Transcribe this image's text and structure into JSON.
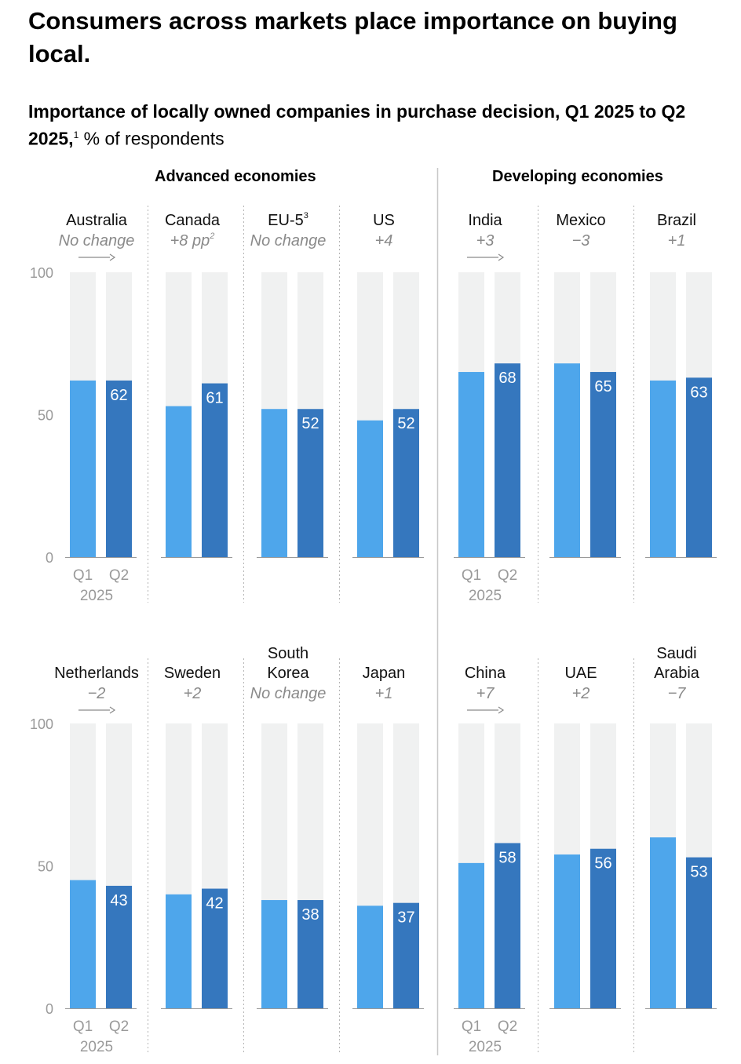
{
  "title": "Consumers across markets place importance on buying local.",
  "subtitle": {
    "main": "Importance of locally owned companies in purchase decision, Q1 2025 to Q2 2025,",
    "footnote": "1",
    "unit": "% of respondents"
  },
  "groups": {
    "advanced": "Advanced economies",
    "developing": "Developing economies"
  },
  "axis": {
    "ticks": [
      "0",
      "50",
      "100"
    ],
    "q1": "Q1",
    "q2": "Q2",
    "year": "2025"
  },
  "colors": {
    "q1": "#4ea6eb",
    "q2": "#3577be",
    "track": "#f0f1f1",
    "change": "#8a8a8a",
    "axis": "#9a9a9a"
  },
  "chart_data": {
    "type": "bar",
    "title": "Importance of locally owned companies in purchase decision, Q1 2025 to Q2 2025",
    "ylabel": "% of respondents",
    "ylim": [
      0,
      100
    ],
    "series_names": [
      "Q1 2025",
      "Q2 2025"
    ],
    "rows": [
      [
        {
          "name": [
            "Australia"
          ],
          "change": "No change",
          "q1": 62,
          "q2": 62
        },
        {
          "name": [
            "Canada"
          ],
          "change": "+8 pp",
          "change_sup": "2",
          "q1": 53,
          "q2": 61
        },
        {
          "name": [
            "EU-5"
          ],
          "name_sup": "3",
          "change": "No change",
          "q1": 52,
          "q2": 52
        },
        {
          "name": [
            "US"
          ],
          "change": "+4",
          "q1": 48,
          "q2": 52
        },
        {
          "name": [
            "India"
          ],
          "change": "+3",
          "q1": 65,
          "q2": 68
        },
        {
          "name": [
            "Mexico"
          ],
          "change": "−3",
          "q1": 68,
          "q2": 65
        },
        {
          "name": [
            "Brazil"
          ],
          "change": "+1",
          "q1": 62,
          "q2": 63
        }
      ],
      [
        {
          "name": [
            "Netherlands"
          ],
          "change": "−2",
          "q1": 45,
          "q2": 43
        },
        {
          "name": [
            "Sweden"
          ],
          "change": "+2",
          "q1": 40,
          "q2": 42
        },
        {
          "name": [
            "South",
            "Korea"
          ],
          "change": "No change",
          "q1": 38,
          "q2": 38
        },
        {
          "name": [
            "Japan"
          ],
          "change": "+1",
          "q1": 36,
          "q2": 37
        },
        {
          "name": [
            "China"
          ],
          "change": "+7",
          "q1": 51,
          "q2": 58
        },
        {
          "name": [
            "UAE"
          ],
          "change": "+2",
          "q1": 54,
          "q2": 56
        },
        {
          "name": [
            "Saudi",
            "Arabia"
          ],
          "change": "−7",
          "q1": 60,
          "q2": 53
        }
      ]
    ]
  }
}
